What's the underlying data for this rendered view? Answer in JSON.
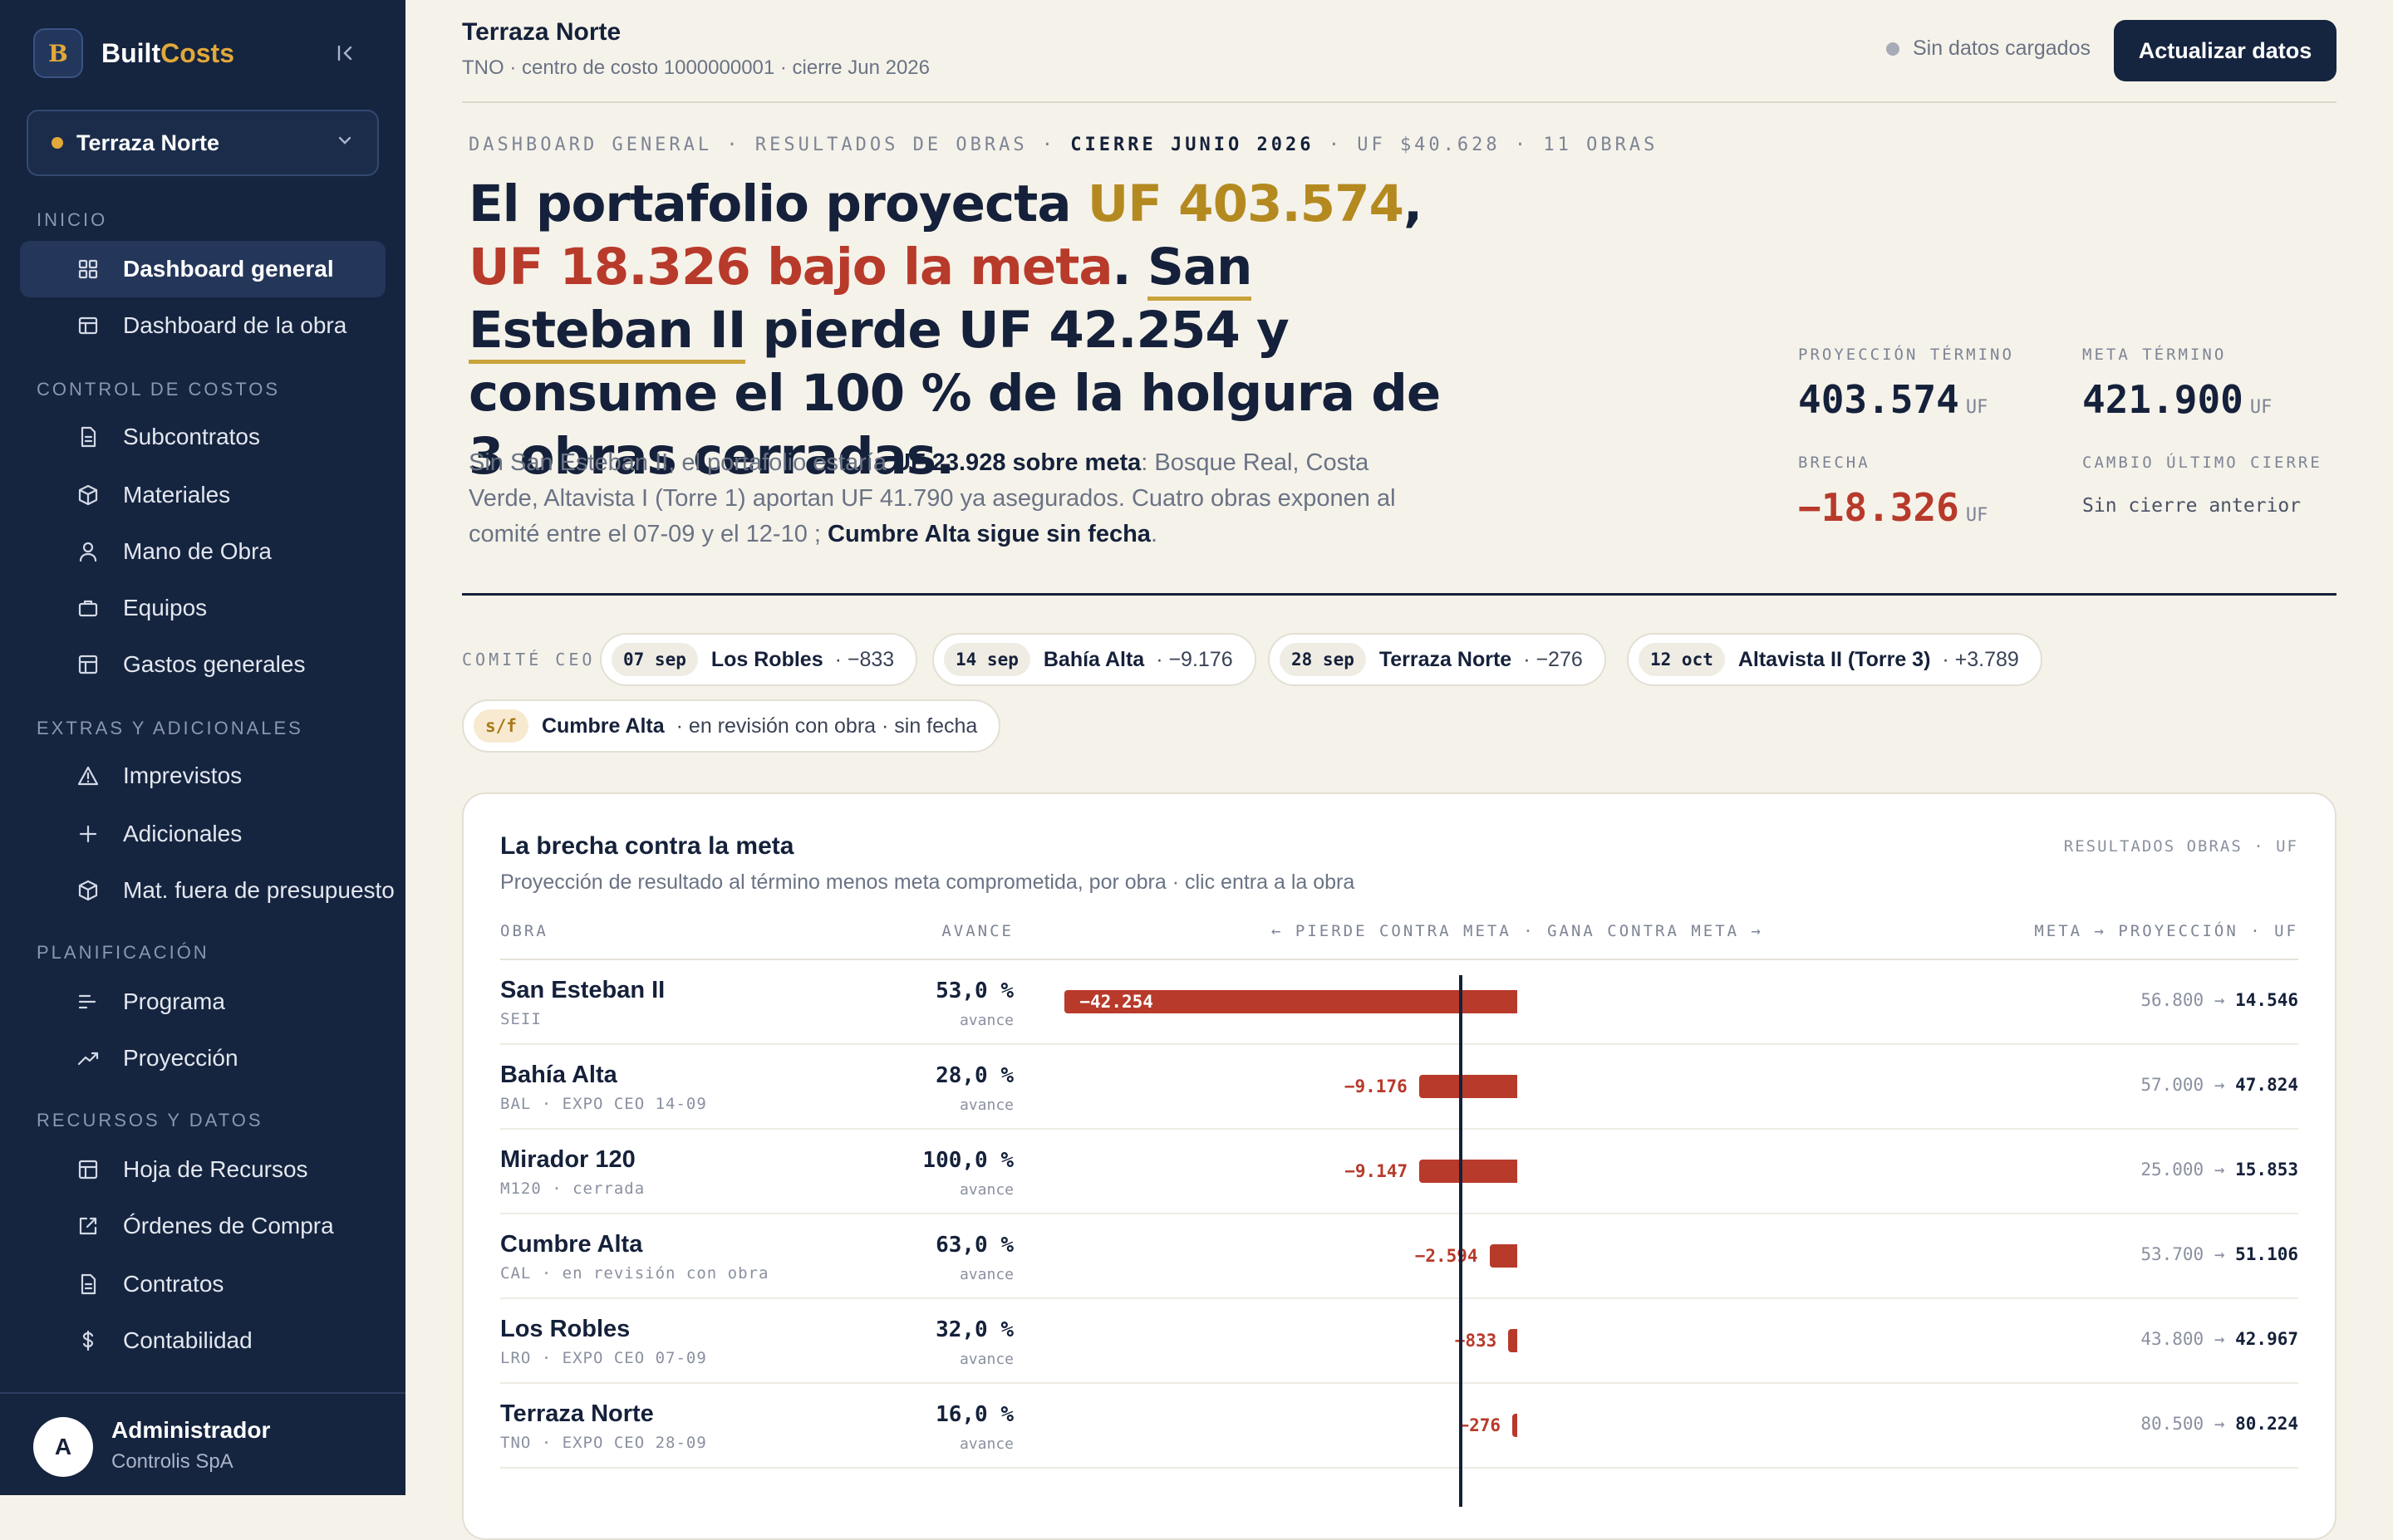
{
  "brand": {
    "mark": "B",
    "name_a": "Built",
    "name_b": "Costs"
  },
  "sidebar": {
    "project": "Terraza Norte",
    "sections": {
      "inicio": "INICIO",
      "control": "CONTROL DE COSTOS",
      "extras": "EXTRAS Y ADICIONALES",
      "plan": "PLANIFICACIÓN",
      "recursos": "RECURSOS Y DATOS"
    },
    "items": [
      {
        "label": "Dashboard general",
        "icon": "grid-icon"
      },
      {
        "label": "Dashboard de la obra",
        "icon": "layout-icon"
      },
      {
        "label": "Subcontratos",
        "icon": "file-icon"
      },
      {
        "label": "Materiales",
        "icon": "box-icon"
      },
      {
        "label": "Mano de Obra",
        "icon": "user-icon"
      },
      {
        "label": "Equipos",
        "icon": "briefcase-icon"
      },
      {
        "label": "Gastos generales",
        "icon": "table-icon"
      },
      {
        "label": "Imprevistos",
        "icon": "warning-icon"
      },
      {
        "label": "Adicionales",
        "icon": "plus-icon"
      },
      {
        "label": "Mat. fuera de presupuesto",
        "icon": "box-icon"
      },
      {
        "label": "Programa",
        "icon": "gantt-icon"
      },
      {
        "label": "Proyección",
        "icon": "trend-icon"
      },
      {
        "label": "Hoja de Recursos",
        "icon": "table-icon"
      },
      {
        "label": "Órdenes de Compra",
        "icon": "external-icon"
      },
      {
        "label": "Contratos",
        "icon": "file-icon"
      },
      {
        "label": "Contabilidad",
        "icon": "dollar-icon"
      }
    ],
    "user": {
      "initial": "A",
      "name": "Administrador",
      "org": "Controlis SpA"
    }
  },
  "topbar": {
    "title": "Terraza Norte",
    "subtitle": "TNO · centro de costo 1000000001 · cierre Jun 2026",
    "status": "Sin datos cargados",
    "update_label": "Actualizar datos"
  },
  "crumbs": {
    "a": "DASHBOARD GENERAL · RESULTADOS DE OBRAS · ",
    "b": "CIERRE JUNIO 2026",
    "c": " · UF $40.628 · 11 OBRAS"
  },
  "headline": {
    "p1": "El portafolio proyecta ",
    "gold": "UF 403.574",
    "p2": ", ",
    "red": "UF 18.326 bajo la meta",
    "p3": ". ",
    "under": "San Esteban II",
    "p4": " pierde UF 42.254 y consume el 100 % de la holgura de 3 obras cerradas."
  },
  "lede": {
    "p1": "Sin San Esteban II, el portafolio estaría ",
    "b1": "UF 23.928 sobre meta",
    "p2": ": Bosque Real, Costa Verde, Altavista I (Torre 1) aportan UF 41.790 ya asegurados. Cuatro obras exponen al comité entre el 07-09 y el 12-10 ; ",
    "b2": "Cumbre Alta sigue sin fecha",
    "p3": "."
  },
  "kpis": {
    "proj_label": "PROYECCIÓN TÉRMINO",
    "proj_value": "403.574",
    "meta_label": "META TÉRMINO",
    "meta_value": "421.900",
    "gap_label": "BRECHA",
    "gap_value": "−18.326",
    "change_label": "CAMBIO ÚLTIMO CIERRE",
    "change_value": "Sin cierre anterior",
    "unit": "UF"
  },
  "committee": {
    "label": "COMITÉ CEO",
    "chips": [
      {
        "date": "07 sep",
        "name": "Los Robles",
        "value": "· −833"
      },
      {
        "date": "14 sep",
        "name": "Bahía Alta",
        "value": "· −9.176"
      },
      {
        "date": "28 sep",
        "name": "Terraza Norte",
        "value": "· −276"
      },
      {
        "date": "12 oct",
        "name": "Altavista II (Torre 3)",
        "value": "· +3.789"
      },
      {
        "date": "s/f",
        "name": "Cumbre Alta",
        "value": "· en revisión con obra · sin fecha"
      }
    ]
  },
  "card": {
    "title": "La brecha contra la meta",
    "subtitle": "Proyección de resultado al término menos meta comprometida, por obra · clic entra a la obra",
    "tag": "RESULTADOS OBRAS · UF",
    "headers": {
      "obra": "OBRA",
      "avance": "AVANCE",
      "gap": "← PIERDE CONTRA META · GANA CONTRA META →",
      "mp": "META → PROYECCIÓN · UF"
    },
    "pct_sub": "avance",
    "rows": [
      {
        "name": "San Esteban II",
        "code": "SEII",
        "pct": "53,0 %",
        "gap": -42254,
        "gap_label": "−42.254",
        "meta": "56.800",
        "proj": "14.546"
      },
      {
        "name": "Bahía Alta",
        "code": "BAL · EXPO CEO 14-09",
        "pct": "28,0 %",
        "gap": -9176,
        "gap_label": "−9.176",
        "meta": "57.000",
        "proj": "47.824"
      },
      {
        "name": "Mirador 120",
        "code": "M120 · cerrada",
        "pct": "100,0 %",
        "gap": -9147,
        "gap_label": "−9.147",
        "meta": "25.000",
        "proj": "15.853"
      },
      {
        "name": "Cumbre Alta",
        "code": "CAL · en revisión con obra",
        "pct": "63,0 %",
        "gap": -2594,
        "gap_label": "−2.594",
        "meta": "53.700",
        "proj": "51.106"
      },
      {
        "name": "Los Robles",
        "code": "LRO · EXPO CEO 07-09",
        "pct": "32,0 %",
        "gap": -833,
        "gap_label": "−833",
        "meta": "43.800",
        "proj": "42.967"
      },
      {
        "name": "Terraza Norte",
        "code": "TNO · EXPO CEO 28-09",
        "pct": "16,0 %",
        "gap": -276,
        "gap_label": "−276",
        "meta": "80.500",
        "proj": "80.224"
      }
    ]
  }
}
